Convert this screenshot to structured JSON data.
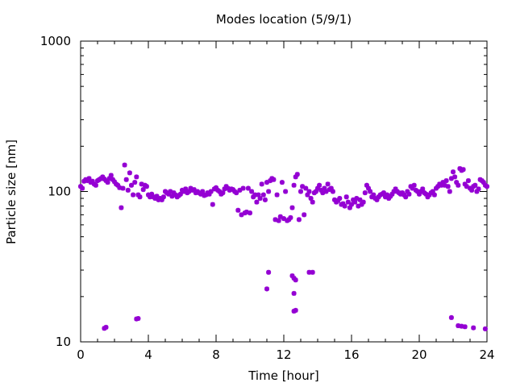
{
  "chart_data": {
    "type": "scatter",
    "title": "Modes location (5/9/1)",
    "xlabel": "Time [hour]",
    "ylabel": "Particle size [nm]",
    "xlim": [
      0,
      24
    ],
    "ylim": [
      10,
      1000
    ],
    "yscale": "log",
    "grid": false,
    "marker_color": "#9400d3",
    "x_ticks": [
      0,
      4,
      8,
      12,
      16,
      20,
      24
    ],
    "x_tick_labels": [
      "0",
      "4",
      "8",
      "12",
      "16",
      "20",
      "24"
    ],
    "y_ticks": [
      10,
      100,
      1000
    ],
    "y_tick_labels": [
      "10",
      "100",
      "1000"
    ],
    "series": [
      {
        "points": [
          [
            0.0,
            108
          ],
          [
            0.1,
            105
          ],
          [
            0.2,
            117
          ],
          [
            0.3,
            120
          ],
          [
            0.4,
            118
          ],
          [
            0.5,
            122
          ],
          [
            0.6,
            115
          ],
          [
            0.7,
            117
          ],
          [
            0.8,
            112
          ],
          [
            0.9,
            110
          ],
          [
            1.0,
            118
          ],
          [
            1.1,
            120
          ],
          [
            1.2,
            122
          ],
          [
            1.3,
            125
          ],
          [
            1.4,
            121
          ],
          [
            1.5,
            118
          ],
          [
            1.6,
            115
          ],
          [
            1.7,
            122
          ],
          [
            1.8,
            128
          ],
          [
            1.9,
            120
          ],
          [
            2.0,
            116
          ],
          [
            2.1,
            112
          ],
          [
            2.2,
            110
          ],
          [
            2.3,
            106
          ],
          [
            2.4,
            78
          ],
          [
            2.5,
            105
          ],
          [
            2.6,
            150
          ],
          [
            2.7,
            120
          ],
          [
            2.8,
            102
          ],
          [
            2.9,
            133
          ],
          [
            3.0,
            110
          ],
          [
            3.1,
            95
          ],
          [
            3.2,
            115
          ],
          [
            3.3,
            125
          ],
          [
            3.4,
            95
          ],
          [
            3.5,
            92
          ],
          [
            3.6,
            112
          ],
          [
            3.7,
            103
          ],
          [
            3.8,
            110
          ],
          [
            3.9,
            108
          ],
          [
            4.0,
            95
          ],
          [
            4.1,
            92
          ],
          [
            4.2,
            96
          ],
          [
            4.3,
            92
          ],
          [
            4.4,
            90
          ],
          [
            4.5,
            93
          ],
          [
            4.6,
            88
          ],
          [
            4.7,
            90
          ],
          [
            4.8,
            88
          ],
          [
            4.9,
            92
          ],
          [
            5.0,
            100
          ],
          [
            5.1,
            98
          ],
          [
            5.2,
            96
          ],
          [
            5.3,
            100
          ],
          [
            5.4,
            93
          ],
          [
            5.5,
            98
          ],
          [
            5.6,
            95
          ],
          [
            5.7,
            92
          ],
          [
            5.8,
            94
          ],
          [
            5.9,
            96
          ],
          [
            6.0,
            102
          ],
          [
            6.1,
            100
          ],
          [
            6.2,
            104
          ],
          [
            6.3,
            98
          ],
          [
            6.4,
            100
          ],
          [
            6.5,
            105
          ],
          [
            6.6,
            102
          ],
          [
            6.7,
            103
          ],
          [
            6.8,
            98
          ],
          [
            6.9,
            100
          ],
          [
            7.0,
            98
          ],
          [
            7.1,
            96
          ],
          [
            7.2,
            100
          ],
          [
            7.3,
            94
          ],
          [
            7.4,
            95
          ],
          [
            7.5,
            98
          ],
          [
            7.6,
            96
          ],
          [
            7.7,
            100
          ],
          [
            7.8,
            82
          ],
          [
            7.9,
            104
          ],
          [
            8.0,
            106
          ],
          [
            8.1,
            102
          ],
          [
            8.2,
            100
          ],
          [
            8.3,
            96
          ],
          [
            8.4,
            98
          ],
          [
            8.5,
            104
          ],
          [
            8.6,
            108
          ],
          [
            8.7,
            105
          ],
          [
            8.8,
            102
          ],
          [
            8.9,
            104
          ],
          [
            9.0,
            103
          ],
          [
            9.1,
            100
          ],
          [
            9.2,
            98
          ],
          [
            9.3,
            75
          ],
          [
            9.4,
            102
          ],
          [
            9.5,
            70
          ],
          [
            9.6,
            105
          ],
          [
            9.7,
            72
          ],
          [
            9.8,
            73
          ],
          [
            9.9,
            105
          ],
          [
            10.0,
            72
          ],
          [
            10.1,
            100
          ],
          [
            10.2,
            92
          ],
          [
            10.3,
            95
          ],
          [
            10.4,
            85
          ],
          [
            10.5,
            95
          ],
          [
            10.6,
            90
          ],
          [
            10.7,
            112
          ],
          [
            10.8,
            95
          ],
          [
            10.9,
            88
          ],
          [
            11.0,
            115
          ],
          [
            11.1,
            100
          ],
          [
            11.2,
            118
          ],
          [
            11.3,
            122
          ],
          [
            11.4,
            120
          ],
          [
            11.5,
            65
          ],
          [
            11.6,
            95
          ],
          [
            11.7,
            64
          ],
          [
            11.8,
            68
          ],
          [
            11.9,
            115
          ],
          [
            12.0,
            66
          ],
          [
            12.1,
            100
          ],
          [
            12.2,
            64
          ],
          [
            12.3,
            65
          ],
          [
            12.4,
            67
          ],
          [
            12.5,
            78
          ],
          [
            12.6,
            110
          ],
          [
            12.7,
            125
          ],
          [
            12.8,
            130
          ],
          [
            12.9,
            65
          ],
          [
            13.0,
            100
          ],
          [
            13.1,
            108
          ],
          [
            13.2,
            70
          ],
          [
            13.3,
            105
          ],
          [
            13.4,
            95
          ],
          [
            13.5,
            100
          ],
          [
            13.6,
            90
          ],
          [
            13.7,
            85
          ],
          [
            13.8,
            98
          ],
          [
            13.9,
            100
          ],
          [
            14.0,
            105
          ],
          [
            14.1,
            110
          ],
          [
            14.2,
            102
          ],
          [
            14.3,
            98
          ],
          [
            14.4,
            105
          ],
          [
            14.5,
            100
          ],
          [
            14.6,
            112
          ],
          [
            14.7,
            103
          ],
          [
            14.8,
            105
          ],
          [
            14.9,
            100
          ],
          [
            15.0,
            88
          ],
          [
            15.1,
            85
          ],
          [
            15.2,
            87
          ],
          [
            15.3,
            90
          ],
          [
            15.4,
            82
          ],
          [
            15.5,
            83
          ],
          [
            15.6,
            80
          ],
          [
            15.7,
            92
          ],
          [
            15.8,
            85
          ],
          [
            15.9,
            78
          ],
          [
            16.0,
            82
          ],
          [
            16.1,
            88
          ],
          [
            16.2,
            85
          ],
          [
            16.3,
            90
          ],
          [
            16.4,
            80
          ],
          [
            16.5,
            88
          ],
          [
            16.6,
            82
          ],
          [
            16.7,
            85
          ],
          [
            16.8,
            98
          ],
          [
            16.9,
            110
          ],
          [
            17.0,
            105
          ],
          [
            17.1,
            100
          ],
          [
            17.2,
            92
          ],
          [
            17.3,
            95
          ],
          [
            17.4,
            90
          ],
          [
            17.5,
            88
          ],
          [
            17.6,
            92
          ],
          [
            17.7,
            95
          ],
          [
            17.8,
            96
          ],
          [
            17.9,
            98
          ],
          [
            18.0,
            92
          ],
          [
            18.1,
            95
          ],
          [
            18.2,
            90
          ],
          [
            18.3,
            93
          ],
          [
            18.4,
            96
          ],
          [
            18.5,
            100
          ],
          [
            18.6,
            104
          ],
          [
            18.7,
            100
          ],
          [
            18.8,
            98
          ],
          [
            18.9,
            96
          ],
          [
            19.0,
            98
          ],
          [
            19.1,
            95
          ],
          [
            19.2,
            92
          ],
          [
            19.3,
            100
          ],
          [
            19.4,
            96
          ],
          [
            19.5,
            108
          ],
          [
            19.6,
            105
          ],
          [
            19.7,
            110
          ],
          [
            19.8,
            102
          ],
          [
            19.9,
            100
          ],
          [
            20.0,
            96
          ],
          [
            20.1,
            100
          ],
          [
            20.2,
            104
          ],
          [
            20.3,
            98
          ],
          [
            20.4,
            96
          ],
          [
            20.5,
            92
          ],
          [
            20.6,
            95
          ],
          [
            20.7,
            98
          ],
          [
            20.8,
            100
          ],
          [
            20.9,
            95
          ],
          [
            21.0,
            105
          ],
          [
            21.1,
            108
          ],
          [
            21.2,
            112
          ],
          [
            21.3,
            110
          ],
          [
            21.4,
            115
          ],
          [
            21.5,
            110
          ],
          [
            21.6,
            118
          ],
          [
            21.7,
            108
          ],
          [
            21.8,
            100
          ],
          [
            21.9,
            122
          ],
          [
            22.0,
            135
          ],
          [
            22.1,
            125
          ],
          [
            22.2,
            115
          ],
          [
            22.3,
            110
          ],
          [
            22.4,
            142
          ],
          [
            22.5,
            138
          ],
          [
            22.6,
            140
          ],
          [
            22.7,
            112
          ],
          [
            22.8,
            108
          ],
          [
            22.9,
            118
          ],
          [
            23.0,
            105
          ],
          [
            23.1,
            102
          ],
          [
            23.2,
            108
          ],
          [
            23.3,
            110
          ],
          [
            23.4,
            100
          ],
          [
            23.5,
            104
          ],
          [
            23.6,
            120
          ],
          [
            23.7,
            118
          ],
          [
            23.8,
            115
          ],
          [
            23.9,
            110
          ],
          [
            24.0,
            108
          ],
          [
            1.4,
            12.3
          ],
          [
            1.5,
            12.5
          ],
          [
            3.3,
            14.2
          ],
          [
            3.4,
            14.3
          ],
          [
            11.0,
            22.5
          ],
          [
            11.1,
            29.0
          ],
          [
            12.5,
            27.5
          ],
          [
            12.6,
            26.5
          ],
          [
            12.7,
            25.8
          ],
          [
            12.6,
            21.0
          ],
          [
            12.6,
            16.0
          ],
          [
            12.7,
            16.2
          ],
          [
            13.5,
            29.0
          ],
          [
            13.7,
            29.0
          ],
          [
            21.9,
            14.5
          ],
          [
            22.3,
            12.8
          ],
          [
            22.5,
            12.7
          ],
          [
            22.7,
            12.6
          ],
          [
            23.2,
            12.4
          ],
          [
            23.9,
            12.2
          ]
        ]
      }
    ]
  }
}
